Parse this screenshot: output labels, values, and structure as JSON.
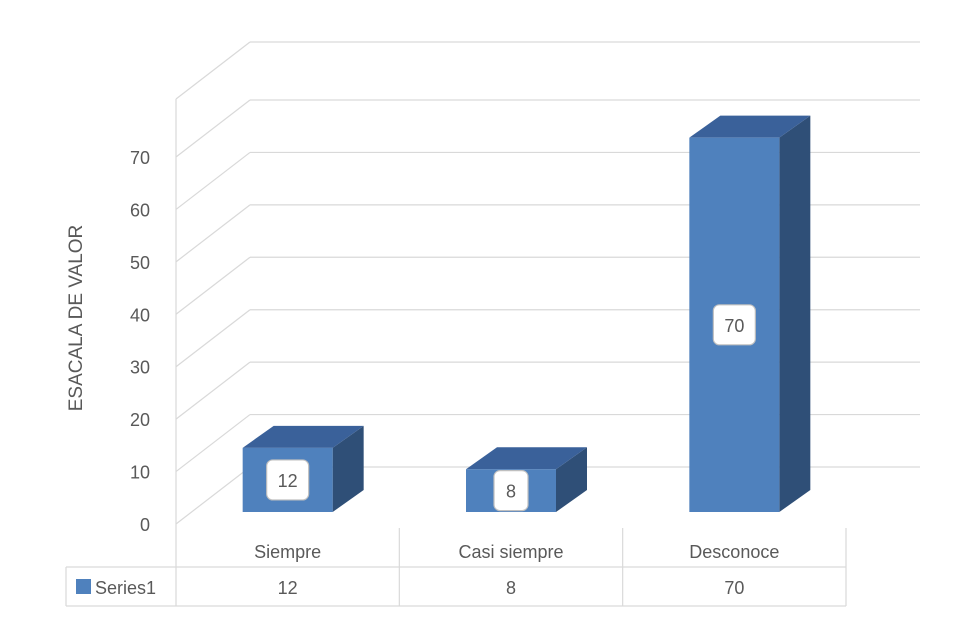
{
  "chart_data": {
    "type": "bar",
    "style": "3d-column",
    "categories": [
      "Siempre",
      "Casi siempre",
      "Desconoce"
    ],
    "series": [
      {
        "name": "Series1",
        "values": [
          12,
          8,
          70
        ]
      }
    ],
    "data_labels": [
      "12",
      "8",
      "70"
    ],
    "ylabel": "ESACALA DE VALOR",
    "xlabel": "",
    "ylim": [
      0,
      70
    ],
    "ytick_step": 10,
    "yticks": [
      "0",
      "10",
      "20",
      "30",
      "40",
      "50",
      "60",
      "70"
    ],
    "grid": true,
    "legend": "data-table-bottom",
    "data_table": {
      "series_label": "Series1",
      "values": [
        "12",
        "8",
        "70"
      ]
    },
    "colors": {
      "bar_front": "#4f81bd",
      "bar_side": "#2f4f77",
      "bar_top": "#3a619a",
      "gridline": "#d9d9d9",
      "text": "#595959"
    }
  }
}
